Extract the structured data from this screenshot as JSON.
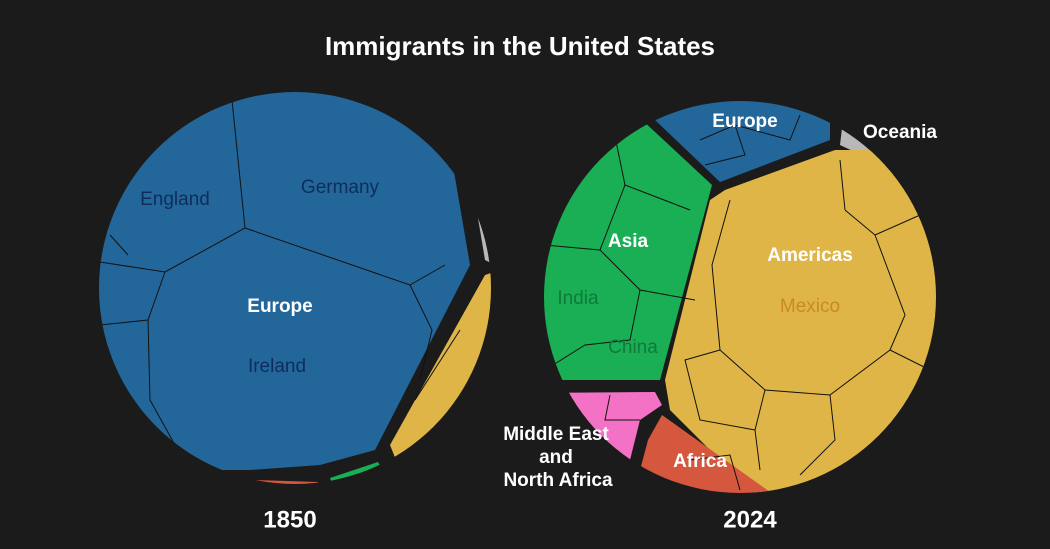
{
  "title": "Immigrants in the United States",
  "panels": [
    {
      "year": "1850",
      "labels": {
        "region": "Europe",
        "countries": [
          "England",
          "Germany",
          "Ireland"
        ]
      }
    },
    {
      "year": "2024",
      "labels": {
        "regions": [
          "Europe",
          "Oceania",
          "Americas",
          "Asia",
          "Africa"
        ],
        "middle_east": [
          "Middle East",
          "and",
          "North Africa"
        ],
        "countries": [
          "Mexico",
          "India",
          "China"
        ]
      }
    }
  ]
}
